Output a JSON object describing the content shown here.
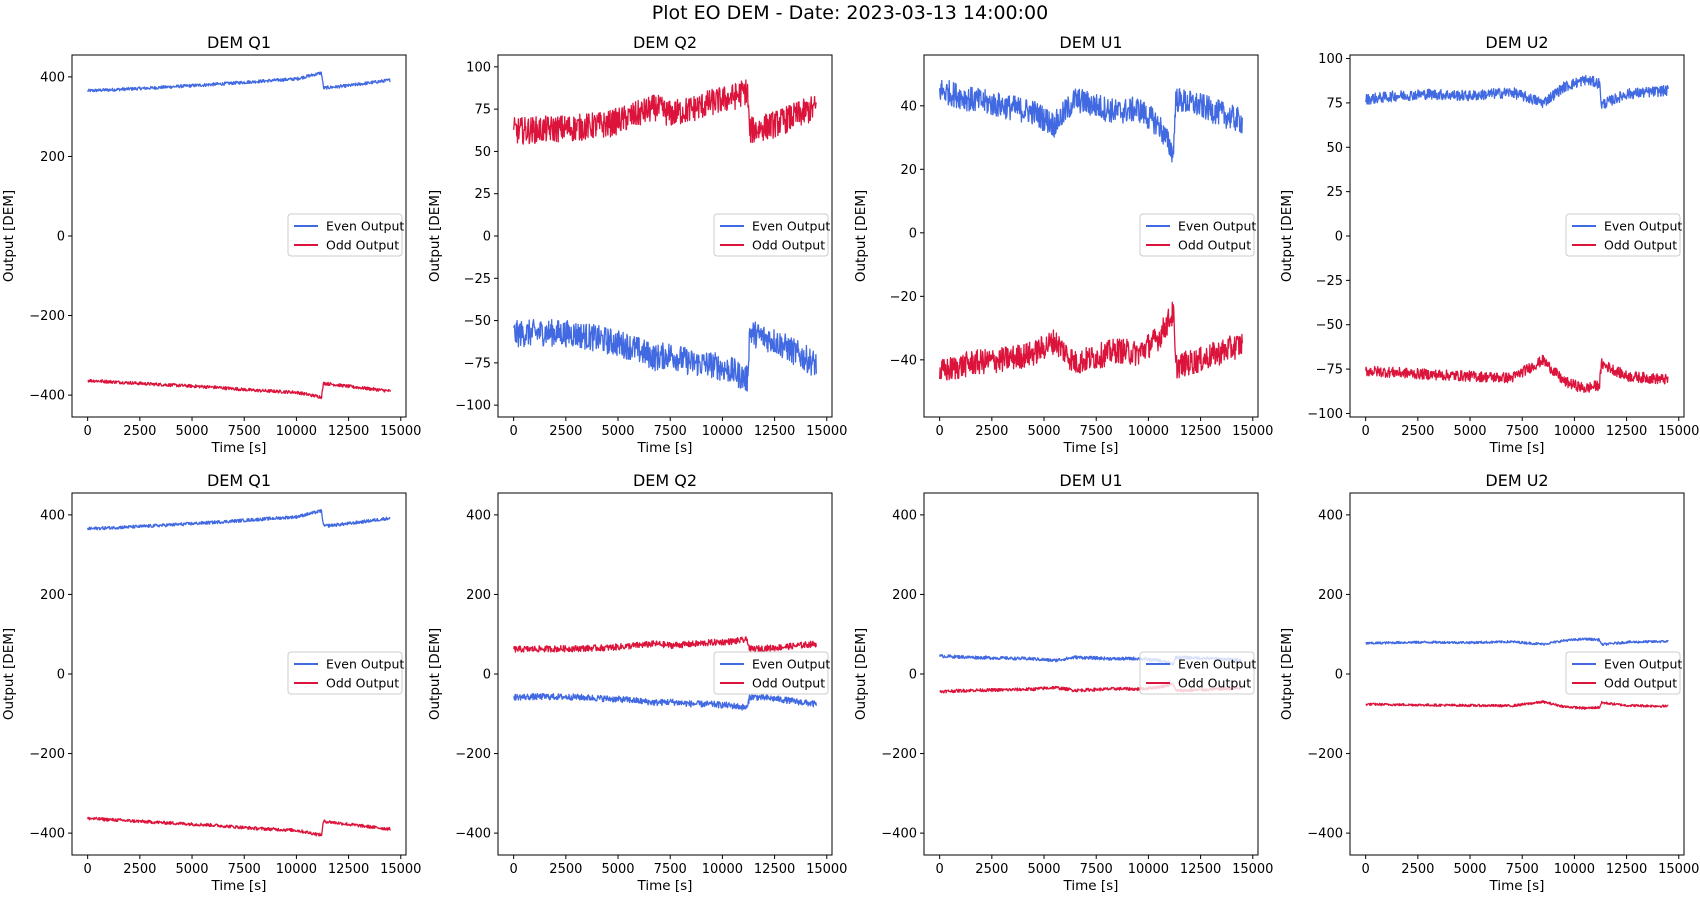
{
  "suptitle": "Plot EO DEM - Date: 2023-03-13 14:00:00",
  "colors": {
    "even": "#4169e1",
    "odd": "#dc143c"
  },
  "chart_data": [
    {
      "type": "line",
      "title": "DEM Q1",
      "xlabel": "Time [s]",
      "ylabel": "Output [DEM]",
      "xlim": [
        -750,
        15250
      ],
      "ylim": [
        -455,
        455
      ],
      "xticks": [
        0,
        2500,
        5000,
        7500,
        10000,
        12500,
        15000
      ],
      "yticks": [
        -400,
        -200,
        0,
        200,
        400
      ],
      "legend": "center-right",
      "grid": false,
      "series": [
        {
          "name": "Even Output",
          "x": [
            0,
            3000,
            6000,
            8000,
            10000,
            11200,
            11300,
            12500,
            14500
          ],
          "y": [
            365,
            372,
            381,
            388,
            395,
            410,
            372,
            378,
            392
          ],
          "noise": 4
        },
        {
          "name": "Odd Output",
          "x": [
            0,
            3000,
            6000,
            8000,
            10000,
            11200,
            11300,
            12500,
            14500
          ],
          "y": [
            -363,
            -372,
            -380,
            -388,
            -393,
            -405,
            -370,
            -378,
            -390
          ],
          "noise": 4
        }
      ]
    },
    {
      "type": "line",
      "title": "DEM Q2",
      "xlabel": "Time [s]",
      "ylabel": "Output [DEM]",
      "xlim": [
        -750,
        15250
      ],
      "ylim": [
        -107,
        107
      ],
      "xticks": [
        0,
        2500,
        5000,
        7500,
        10000,
        12500,
        15000
      ],
      "yticks": [
        -100,
        -75,
        -50,
        -25,
        0,
        25,
        50,
        75,
        100
      ],
      "legend": "center-right",
      "grid": false,
      "series": [
        {
          "name": "Even Output",
          "x": [
            0,
            1500,
            3000,
            4500,
            5500,
            6800,
            7500,
            8500,
            9500,
            10500,
            11200,
            11300,
            12500,
            14500
          ],
          "y": [
            -58,
            -57,
            -58,
            -62,
            -65,
            -72,
            -70,
            -75,
            -76,
            -80,
            -85,
            -57,
            -62,
            -76
          ],
          "noise": 8
        },
        {
          "name": "Odd Output",
          "x": [
            0,
            1500,
            3000,
            4500,
            5500,
            6800,
            7500,
            8500,
            9500,
            10500,
            11200,
            11300,
            12500,
            14500
          ],
          "y": [
            62,
            63,
            64,
            66,
            70,
            76,
            72,
            75,
            79,
            82,
            86,
            62,
            66,
            76
          ],
          "noise": 8
        }
      ]
    },
    {
      "type": "line",
      "title": "DEM U1",
      "xlabel": "Time [s]",
      "ylabel": "Output [DEM]",
      "xlim": [
        -750,
        15250
      ],
      "ylim": [
        -58,
        56
      ],
      "xticks": [
        0,
        2500,
        5000,
        7500,
        10000,
        12500,
        15000
      ],
      "yticks": [
        -40,
        -20,
        0,
        20,
        40
      ],
      "legend": "center-right",
      "grid": false,
      "series": [
        {
          "name": "Even Output",
          "x": [
            0,
            1500,
            3000,
            4500,
            5500,
            6500,
            7500,
            8500,
            9500,
            10500,
            11200,
            11300,
            12500,
            14500
          ],
          "y": [
            45,
            42,
            40,
            38,
            34,
            42,
            40,
            38,
            39,
            34,
            25,
            42,
            40,
            35
          ],
          "noise": 4
        },
        {
          "name": "Odd Output",
          "x": [
            0,
            1500,
            3000,
            4500,
            5500,
            6500,
            7500,
            8500,
            9500,
            10500,
            11200,
            11300,
            12500,
            14500
          ],
          "y": [
            -44,
            -41,
            -40,
            -38,
            -34,
            -41,
            -39,
            -37,
            -38,
            -33,
            -25,
            -42,
            -40,
            -35
          ],
          "noise": 4
        }
      ]
    },
    {
      "type": "line",
      "title": "DEM U2",
      "xlabel": "Time [s]",
      "ylabel": "Output [DEM]",
      "xlim": [
        -750,
        15250
      ],
      "ylim": [
        -102,
        102
      ],
      "xticks": [
        0,
        2500,
        5000,
        7500,
        10000,
        12500,
        15000
      ],
      "yticks": [
        -100,
        -75,
        -50,
        -25,
        0,
        25,
        50,
        75,
        100
      ],
      "legend": "center-right",
      "grid": false,
      "series": [
        {
          "name": "Even Output",
          "x": [
            0,
            1500,
            3000,
            5000,
            7000,
            8500,
            9500,
            10500,
            11200,
            11300,
            12500,
            14500
          ],
          "y": [
            77,
            79,
            80,
            79,
            81,
            75,
            84,
            88,
            86,
            74,
            80,
            82
          ],
          "noise": 3
        },
        {
          "name": "Odd Output",
          "x": [
            0,
            1500,
            3000,
            5000,
            7000,
            8500,
            9500,
            10500,
            11200,
            11300,
            12500,
            14500
          ],
          "y": [
            -76,
            -77,
            -78,
            -79,
            -80,
            -70,
            -82,
            -86,
            -84,
            -72,
            -79,
            -81
          ],
          "noise": 3
        }
      ]
    },
    {
      "type": "line",
      "title": "DEM Q1",
      "xlabel": "Time [s]",
      "ylabel": "Output [DEM]",
      "xlim": [
        -750,
        15250
      ],
      "ylim": [
        -455,
        455
      ],
      "xticks": [
        0,
        2500,
        5000,
        7500,
        10000,
        12500,
        15000
      ],
      "yticks": [
        -400,
        -200,
        0,
        200,
        400
      ],
      "legend": "center-right",
      "grid": false,
      "series": [
        {
          "name": "Even Output",
          "x": [
            0,
            3000,
            6000,
            8000,
            10000,
            11200,
            11300,
            12500,
            14500
          ],
          "y": [
            365,
            372,
            381,
            388,
            395,
            410,
            372,
            378,
            392
          ],
          "noise": 4
        },
        {
          "name": "Odd Output",
          "x": [
            0,
            3000,
            6000,
            8000,
            10000,
            11200,
            11300,
            12500,
            14500
          ],
          "y": [
            -363,
            -372,
            -380,
            -388,
            -393,
            -405,
            -370,
            -378,
            -390
          ],
          "noise": 4
        }
      ]
    },
    {
      "type": "line",
      "title": "DEM Q2",
      "xlabel": "Time [s]",
      "ylabel": "Output [DEM]",
      "xlim": [
        -750,
        15250
      ],
      "ylim": [
        -455,
        455
      ],
      "xticks": [
        0,
        2500,
        5000,
        7500,
        10000,
        12500,
        15000
      ],
      "yticks": [
        -400,
        -200,
        0,
        200,
        400
      ],
      "legend": "center-right",
      "grid": false,
      "series": [
        {
          "name": "Even Output",
          "x": [
            0,
            1500,
            3000,
            4500,
            5500,
            6800,
            7500,
            8500,
            9500,
            10500,
            11200,
            11300,
            12500,
            14500
          ],
          "y": [
            -58,
            -57,
            -58,
            -62,
            -65,
            -72,
            -70,
            -75,
            -76,
            -80,
            -85,
            -57,
            -62,
            -76
          ],
          "noise": 8
        },
        {
          "name": "Odd Output",
          "x": [
            0,
            1500,
            3000,
            4500,
            5500,
            6800,
            7500,
            8500,
            9500,
            10500,
            11200,
            11300,
            12500,
            14500
          ],
          "y": [
            62,
            63,
            64,
            66,
            70,
            76,
            72,
            75,
            79,
            82,
            86,
            62,
            66,
            76
          ],
          "noise": 8
        }
      ]
    },
    {
      "type": "line",
      "title": "DEM U1",
      "xlabel": "Time [s]",
      "ylabel": "Output [DEM]",
      "xlim": [
        -750,
        15250
      ],
      "ylim": [
        -455,
        455
      ],
      "xticks": [
        0,
        2500,
        5000,
        7500,
        10000,
        12500,
        15000
      ],
      "yticks": [
        -400,
        -200,
        0,
        200,
        400
      ],
      "legend": "center-right",
      "grid": false,
      "series": [
        {
          "name": "Even Output",
          "x": [
            0,
            1500,
            3000,
            4500,
            5500,
            6500,
            7500,
            8500,
            9500,
            10500,
            11200,
            11300,
            12500,
            14500
          ],
          "y": [
            45,
            42,
            40,
            38,
            34,
            42,
            40,
            38,
            39,
            34,
            25,
            42,
            40,
            35
          ],
          "noise": 4
        },
        {
          "name": "Odd Output",
          "x": [
            0,
            1500,
            3000,
            4500,
            5500,
            6500,
            7500,
            8500,
            9500,
            10500,
            11200,
            11300,
            12500,
            14500
          ],
          "y": [
            -44,
            -41,
            -40,
            -38,
            -34,
            -41,
            -39,
            -37,
            -38,
            -33,
            -25,
            -42,
            -40,
            -35
          ],
          "noise": 4
        }
      ]
    },
    {
      "type": "line",
      "title": "DEM U2",
      "xlabel": "Time [s]",
      "ylabel": "Output [DEM]",
      "xlim": [
        -750,
        15250
      ],
      "ylim": [
        -455,
        455
      ],
      "xticks": [
        0,
        2500,
        5000,
        7500,
        10000,
        12500,
        15000
      ],
      "yticks": [
        -400,
        -200,
        0,
        200,
        400
      ],
      "legend": "center-right",
      "grid": false,
      "series": [
        {
          "name": "Even Output",
          "x": [
            0,
            1500,
            3000,
            5000,
            7000,
            8500,
            9500,
            10500,
            11200,
            11300,
            12500,
            14500
          ],
          "y": [
            77,
            79,
            80,
            79,
            81,
            75,
            84,
            88,
            86,
            74,
            80,
            82
          ],
          "noise": 3
        },
        {
          "name": "Odd Output",
          "x": [
            0,
            1500,
            3000,
            5000,
            7000,
            8500,
            9500,
            10500,
            11200,
            11300,
            12500,
            14500
          ],
          "y": [
            -76,
            -77,
            -78,
            -79,
            -80,
            -70,
            -82,
            -86,
            -84,
            -72,
            -79,
            -81
          ],
          "noise": 3
        }
      ]
    }
  ]
}
